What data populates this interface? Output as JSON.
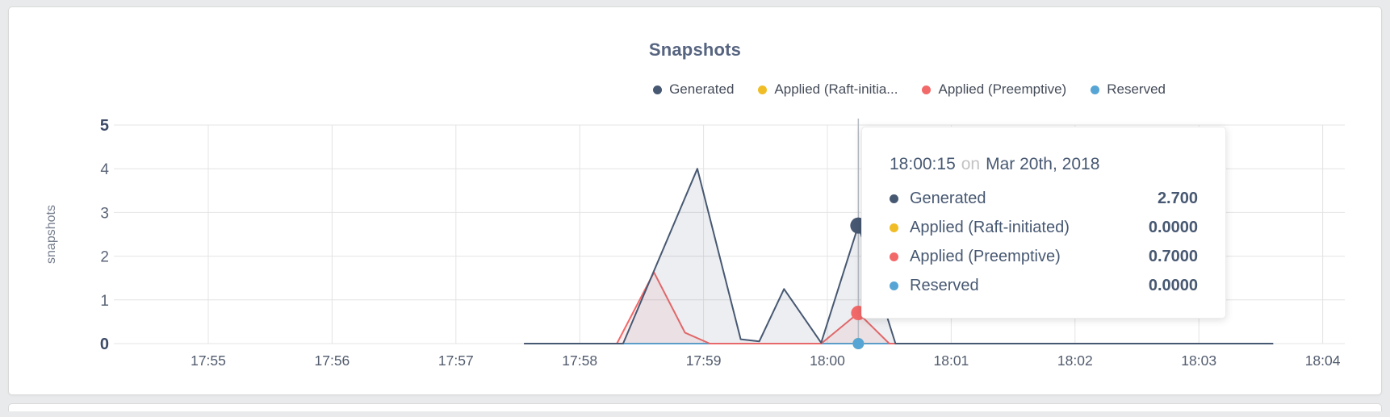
{
  "legend": {
    "items": [
      {
        "label": "Generated",
        "color": "#475872"
      },
      {
        "label": "Applied (Raft-initia...",
        "color": "#f0bd27"
      },
      {
        "label": "Applied (Preemptive)",
        "color": "#f26969"
      },
      {
        "label": "Reserved",
        "color": "#56a5d5"
      }
    ]
  },
  "chart_data": {
    "type": "line",
    "title": "Snapshots",
    "ylabel": "snapshots",
    "ylim": [
      0,
      5
    ],
    "yticks": [
      0,
      1,
      2,
      3,
      4,
      5
    ],
    "xticks": [
      "17:55",
      "17:56",
      "17:57",
      "17:58",
      "17:59",
      "18:00",
      "18:01",
      "18:02",
      "18:03",
      "18:04"
    ],
    "grid": true,
    "legend_position": "top-right",
    "x_unit": "minutes-after-17:55",
    "series": [
      {
        "name": "Applied (Raft-initiated)",
        "color": "#f0bd27",
        "fill": "none",
        "points": [
          [
            2.55,
            0
          ],
          [
            8.6,
            0
          ]
        ]
      },
      {
        "name": "Reserved",
        "color": "#56a5d5",
        "fill": "none",
        "points": [
          [
            2.55,
            0
          ],
          [
            8.6,
            0
          ]
        ]
      },
      {
        "name": "Applied (Preemptive)",
        "color": "#f26969",
        "fill": "rgba(242,105,105,0.10)",
        "points": [
          [
            2.55,
            0
          ],
          [
            3.3,
            0
          ],
          [
            3.6,
            1.63
          ],
          [
            3.85,
            0.25
          ],
          [
            4.05,
            0
          ],
          [
            4.95,
            0
          ],
          [
            5.25,
            0.7
          ],
          [
            5.5,
            0
          ],
          [
            8.6,
            0
          ]
        ]
      },
      {
        "name": "Generated",
        "color": "#475872",
        "fill": "rgba(71,88,114,0.10)",
        "points": [
          [
            2.55,
            0
          ],
          [
            3.35,
            0
          ],
          [
            3.95,
            4.0
          ],
          [
            4.3,
            0.1
          ],
          [
            4.45,
            0.05
          ],
          [
            4.65,
            1.25
          ],
          [
            4.95,
            0.02
          ],
          [
            5.25,
            2.7
          ],
          [
            5.55,
            0
          ],
          [
            8.6,
            0
          ]
        ]
      }
    ],
    "hover": {
      "x": 5.25,
      "points": [
        {
          "series": "Generated",
          "y": 2.7,
          "r": 10,
          "color": "#475872"
        },
        {
          "series": "Applied (Raft-initiated)",
          "y": 0,
          "r": 7,
          "color": "#f0bd27"
        },
        {
          "series": "Applied (Preemptive)",
          "y": 0.7,
          "r": 9,
          "color": "#f26969"
        },
        {
          "series": "Reserved",
          "y": 0,
          "r": 7,
          "color": "#56a5d5"
        }
      ]
    }
  },
  "tooltip": {
    "time": "18:00:15",
    "conjunction": "on",
    "date": "Mar 20th, 2018",
    "rows": [
      {
        "label": "Generated",
        "value": "2.700",
        "color": "#475872"
      },
      {
        "label": "Applied (Raft-initiated)",
        "value": "0.0000",
        "color": "#f0bd27"
      },
      {
        "label": "Applied (Preemptive)",
        "value": "0.7000",
        "color": "#f26969"
      },
      {
        "label": "Reserved",
        "value": "0.0000",
        "color": "#56a5d5"
      }
    ]
  }
}
